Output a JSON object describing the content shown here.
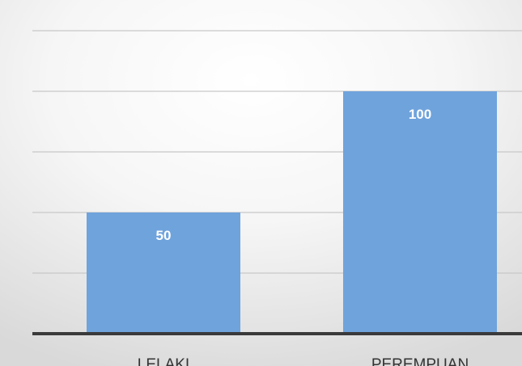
{
  "chart_data": {
    "type": "bar",
    "categories": [
      "LELAKI",
      "PEREMPUAN"
    ],
    "values": [
      50,
      100
    ],
    "data_labels": [
      "50",
      "100"
    ],
    "ylim": [
      0,
      125
    ],
    "grid": true,
    "legend": "none",
    "title": "",
    "xlabel": "",
    "ylabel": ""
  },
  "colors": {
    "bar": "#6fa3dc",
    "bar_label": "#ffffff",
    "axis": "#3a3a3a",
    "grid": "#c8c8c8",
    "tick_label": "#333333"
  }
}
